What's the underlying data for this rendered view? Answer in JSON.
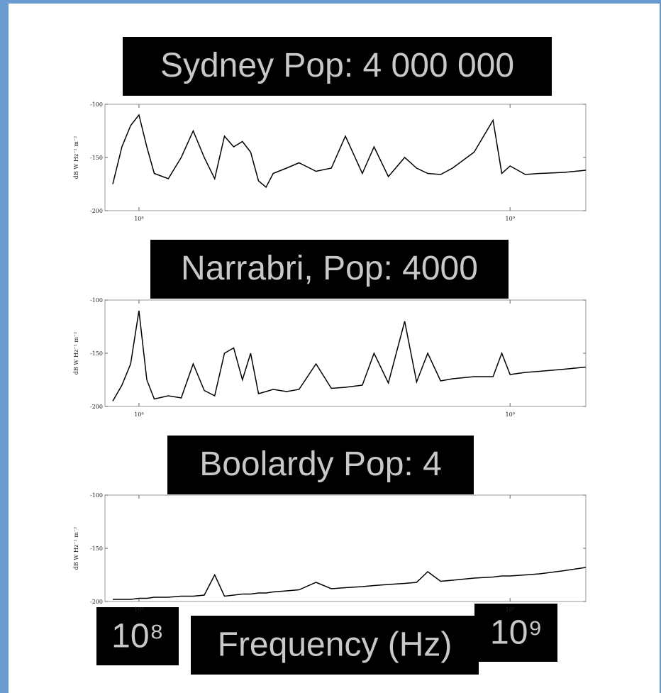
{
  "chart_data": [
    {
      "type": "line",
      "title": "Sydney Pop: 4 000 000",
      "y_label": "dB W Hz⁻¹ m⁻²",
      "log_x": true,
      "xlim": [
        81000000,
        1600000000
      ],
      "ylim": [
        -200,
        -100
      ],
      "yticks": [
        -200,
        -150,
        -100
      ],
      "xticks": [
        {
          "value": 100000000,
          "label": "10⁸"
        },
        {
          "value": 1000000000,
          "label": "10⁹"
        }
      ],
      "x": [
        85000000,
        90000000,
        95000000,
        100000000,
        105000000,
        110000000,
        120000000,
        130000000,
        140000000,
        150000000,
        160000000,
        170000000,
        180000000,
        190000000,
        200000000,
        210000000,
        220000000,
        230000000,
        250000000,
        270000000,
        300000000,
        330000000,
        360000000,
        400000000,
        430000000,
        470000000,
        520000000,
        560000000,
        600000000,
        650000000,
        700000000,
        800000000,
        900000000,
        950000000,
        1000000000,
        1100000000,
        1200000000,
        1400000000,
        1600000000
      ],
      "values": [
        -175,
        -140,
        -120,
        -110,
        -140,
        -165,
        -170,
        -150,
        -125,
        -150,
        -170,
        -130,
        -140,
        -135,
        -145,
        -172,
        -178,
        -165,
        -160,
        -155,
        -163,
        -160,
        -130,
        -165,
        -140,
        -168,
        -150,
        -160,
        -165,
        -166,
        -160,
        -145,
        -115,
        -165,
        -158,
        -166,
        -165,
        -164,
        -162
      ],
      "color": "#000000"
    },
    {
      "type": "line",
      "title": "Narrabri, Pop: 4000",
      "y_label": "dB W Hz⁻¹ m⁻²",
      "log_x": true,
      "xlim": [
        81000000,
        1600000000
      ],
      "ylim": [
        -200,
        -100
      ],
      "yticks": [
        -200,
        -150,
        -100
      ],
      "xticks": [
        {
          "value": 100000000,
          "label": "10⁸"
        },
        {
          "value": 1000000000,
          "label": "10⁹"
        }
      ],
      "x": [
        85000000,
        90000000,
        95000000,
        100000000,
        105000000,
        110000000,
        120000000,
        130000000,
        140000000,
        150000000,
        160000000,
        170000000,
        180000000,
        190000000,
        200000000,
        210000000,
        220000000,
        230000000,
        250000000,
        270000000,
        300000000,
        330000000,
        360000000,
        400000000,
        430000000,
        470000000,
        520000000,
        560000000,
        600000000,
        650000000,
        700000000,
        800000000,
        900000000,
        950000000,
        1000000000,
        1100000000,
        1200000000,
        1400000000,
        1600000000
      ],
      "values": [
        -195,
        -180,
        -160,
        -110,
        -175,
        -193,
        -190,
        -192,
        -160,
        -185,
        -190,
        -150,
        -145,
        -175,
        -150,
        -188,
        -186,
        -184,
        -186,
        -184,
        -160,
        -183,
        -182,
        -180,
        -150,
        -178,
        -120,
        -177,
        -150,
        -176,
        -174,
        -172,
        -172,
        -150,
        -170,
        -168,
        -167,
        -165,
        -163
      ],
      "color": "#000000"
    },
    {
      "type": "line",
      "title": "Boolardy  Pop: 4",
      "y_label": "dB W Hz⁻¹ m⁻²",
      "log_x": true,
      "xlim": [
        81000000,
        1600000000
      ],
      "ylim": [
        -200,
        -100
      ],
      "yticks": [
        -200,
        -150,
        -100
      ],
      "xticks": [
        {
          "value": 100000000,
          "label": "10⁸"
        },
        {
          "value": 1000000000,
          "label": "10⁹"
        }
      ],
      "x": [
        85000000,
        90000000,
        95000000,
        100000000,
        105000000,
        110000000,
        120000000,
        130000000,
        140000000,
        150000000,
        160000000,
        170000000,
        180000000,
        190000000,
        200000000,
        210000000,
        220000000,
        230000000,
        250000000,
        270000000,
        300000000,
        330000000,
        360000000,
        400000000,
        430000000,
        470000000,
        520000000,
        560000000,
        600000000,
        650000000,
        700000000,
        800000000,
        900000000,
        950000000,
        1000000000,
        1100000000,
        1200000000,
        1400000000,
        1600000000
      ],
      "values": [
        -198,
        -198,
        -198,
        -197,
        -197,
        -196,
        -196,
        -195,
        -195,
        -194,
        -175,
        -195,
        -194,
        -193,
        -193,
        -192,
        -192,
        -191,
        -190,
        -189,
        -182,
        -188,
        -187,
        -186,
        -185,
        -184,
        -183,
        -182,
        -172,
        -181,
        -180,
        -178,
        -177,
        -176,
        -176,
        -175,
        -174,
        -171,
        -168
      ],
      "color": "#000000"
    }
  ],
  "slide": {
    "low_label": "10⁸",
    "axis_label": "Frequency (Hz)",
    "high_label": "10⁹"
  }
}
